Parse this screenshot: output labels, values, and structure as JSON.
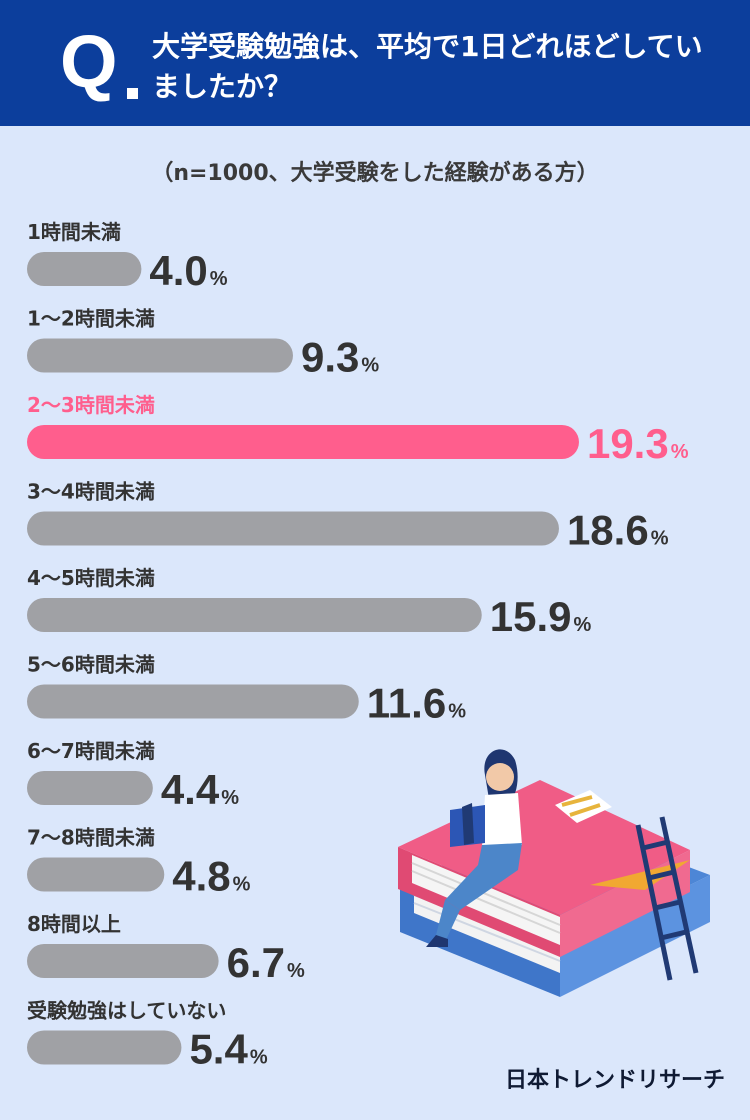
{
  "question": {
    "mark": "Q",
    "text": "大学受験勉強は、平均で1日どれほどしていましたか？"
  },
  "sample_note": "（n=1000、大学受験をした経験がある方）",
  "brand": "日本トレンドリサーチ",
  "colors": {
    "header": "#0c3e9c",
    "background": "#dbe7fb",
    "bar": "#a0a1a5",
    "highlight": "#ff5e8d",
    "label": "#333333"
  },
  "chart_data": {
    "type": "bar",
    "orientation": "horizontal",
    "unit": "%",
    "categories": [
      "1時間未満",
      "1〜2時間未満",
      "2〜3時間未満",
      "3〜4時間未満",
      "4〜5時間未満",
      "5〜6時間未満",
      "6〜7時間未満",
      "7〜8時間未満",
      "8時間以上",
      "受験勉強はしていない"
    ],
    "values": [
      4.0,
      9.3,
      19.3,
      18.6,
      15.9,
      11.6,
      4.4,
      4.8,
      6.7,
      5.4
    ],
    "highlight_index": 2,
    "grid": false
  }
}
